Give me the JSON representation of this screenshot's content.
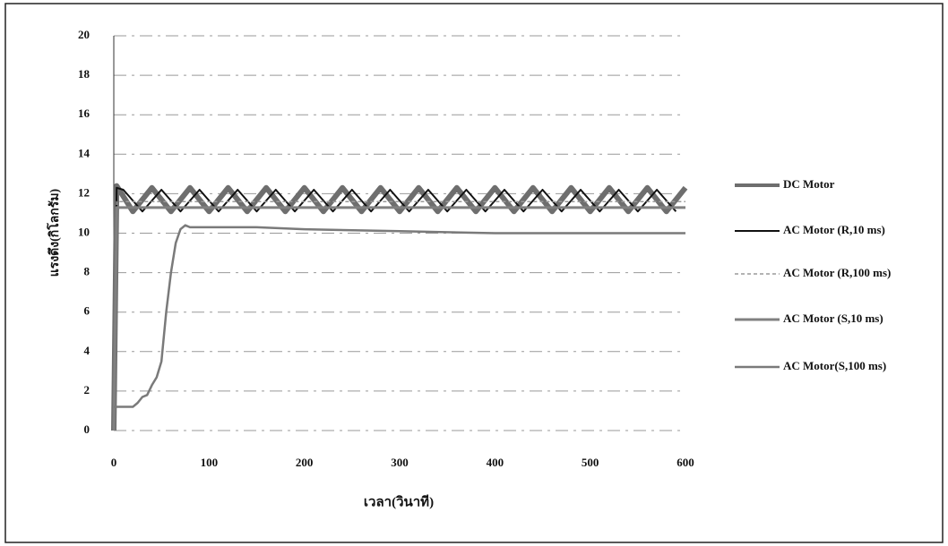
{
  "chart_data": {
    "type": "line",
    "x_label": "เวลา(วินาที)",
    "y_label": "แรงดึง(กิโลกรัม)",
    "xlim": [
      0,
      600
    ],
    "xticks": [
      0,
      100,
      200,
      300,
      400,
      500,
      600
    ],
    "ylim": [
      0,
      20
    ],
    "yticks": [
      0,
      2,
      4,
      6,
      8,
      10,
      12,
      14,
      16,
      18,
      20
    ],
    "grid": true,
    "legend": "right",
    "series": [
      {
        "name": "DC Motor",
        "color": "#6e6e6e",
        "width": 6,
        "x": [
          0,
          3,
          20,
          40,
          60,
          80,
          100,
          120,
          140,
          160,
          180,
          200,
          220,
          240,
          260,
          280,
          300,
          320,
          340,
          360,
          380,
          400,
          420,
          440,
          460,
          480,
          500,
          520,
          540,
          560,
          580,
          600
        ],
        "values": [
          0,
          12.4,
          11.1,
          12.3,
          11.1,
          12.3,
          11.1,
          12.3,
          11.1,
          12.3,
          11.1,
          12.3,
          11.1,
          12.3,
          11.1,
          12.3,
          11.1,
          12.3,
          11.1,
          12.3,
          11.1,
          12.3,
          11.1,
          12.3,
          11.1,
          12.3,
          11.1,
          12.3,
          11.1,
          12.3,
          11.1,
          12.3
        ]
      },
      {
        "name": "AC Motor (R,10 ms)",
        "color": "#111111",
        "width": 2,
        "x": [
          0,
          3,
          10,
          30,
          50,
          70,
          90,
          110,
          130,
          150,
          170,
          190,
          210,
          230,
          250,
          270,
          290,
          310,
          330,
          350,
          370,
          390,
          410,
          430,
          450,
          470,
          490,
          510,
          530,
          550,
          570,
          590
        ],
        "values": [
          0,
          12.3,
          12.2,
          11.1,
          12.2,
          11.1,
          12.2,
          11.1,
          12.2,
          11.1,
          12.2,
          11.1,
          12.2,
          11.1,
          12.2,
          11.1,
          12.2,
          11.1,
          12.2,
          11.1,
          12.2,
          11.1,
          12.2,
          11.1,
          12.2,
          11.1,
          12.2,
          11.1,
          12.2,
          11.1,
          12.2,
          11.1
        ]
      },
      {
        "name": "AC Motor (R,100 ms)",
        "color": "#9a9a9a",
        "width": 1.5,
        "dash": true,
        "x": [
          0,
          3,
          600
        ],
        "values": [
          0,
          11.6,
          11.6
        ]
      },
      {
        "name": "AC Motor (S,10 ms)",
        "color": "#808080",
        "width": 3,
        "x": [
          0,
          3,
          600
        ],
        "values": [
          0,
          11.3,
          11.3
        ]
      },
      {
        "name": "AC Motor(S,100 ms)",
        "color": "#7a7a7a",
        "width": 2.5,
        "x": [
          0,
          20,
          25,
          30,
          35,
          40,
          45,
          50,
          55,
          60,
          65,
          70,
          75,
          80,
          100,
          150,
          200,
          300,
          400,
          500,
          600
        ],
        "values": [
          1.2,
          1.2,
          1.4,
          1.7,
          1.8,
          2.3,
          2.7,
          3.5,
          6,
          8,
          9.5,
          10.2,
          10.4,
          10.3,
          10.3,
          10.3,
          10.2,
          10.1,
          10,
          10,
          10
        ]
      }
    ]
  }
}
